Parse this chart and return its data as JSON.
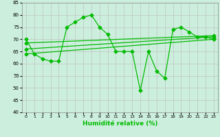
{
  "xlabel": "Humidité relative (%)",
  "background_color": "#cceedd",
  "grid_color": "#bbbbbb",
  "line_color": "#00bb00",
  "xlim": [
    -0.5,
    23.5
  ],
  "ylim": [
    40,
    85
  ],
  "yticks": [
    40,
    45,
    50,
    55,
    60,
    65,
    70,
    75,
    80,
    85
  ],
  "xticks": [
    0,
    1,
    2,
    3,
    4,
    5,
    6,
    7,
    8,
    9,
    10,
    11,
    12,
    13,
    14,
    15,
    16,
    17,
    18,
    19,
    20,
    21,
    22,
    23
  ],
  "series1": [
    70,
    64,
    62,
    61,
    61,
    75,
    77,
    79,
    80,
    75,
    72,
    65,
    65,
    65,
    49,
    65,
    57,
    54,
    74,
    75,
    73,
    71,
    71,
    70
  ],
  "trend1_x": [
    0,
    23
  ],
  "trend1_y": [
    64,
    70
  ],
  "trend2_x": [
    0,
    23
  ],
  "trend2_y": [
    66,
    71
  ],
  "trend3_x": [
    0,
    23
  ],
  "trend3_y": [
    68.5,
    71.5
  ]
}
